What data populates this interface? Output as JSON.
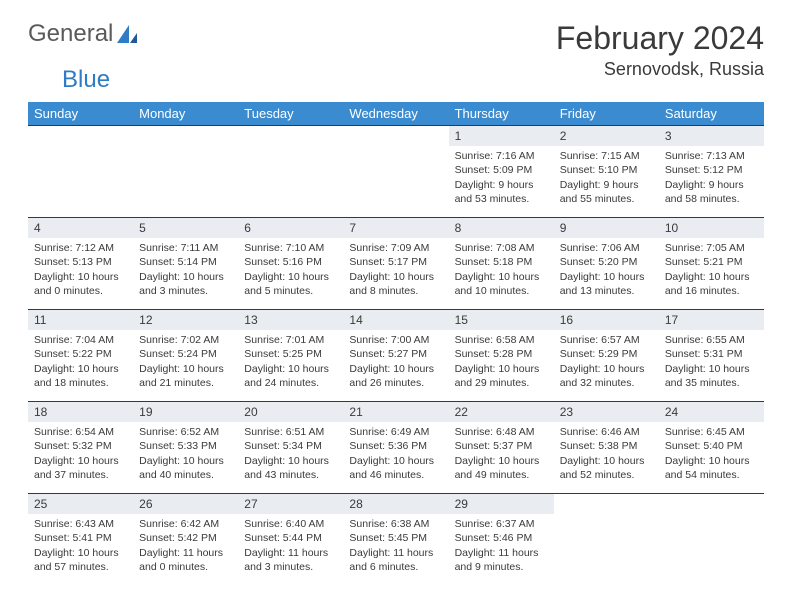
{
  "logo": {
    "word1": "General",
    "word2": "Blue"
  },
  "title": "February 2024",
  "location": "Sernovodsk, Russia",
  "colors": {
    "header_bg": "#3b8bd0",
    "header_text": "#ffffff",
    "daybar_bg": "#e9edf1",
    "daybar_border": "#2a3a52",
    "text": "#3a3a3a",
    "logo_blue": "#2f7cc4"
  },
  "weekdays": [
    "Sunday",
    "Monday",
    "Tuesday",
    "Wednesday",
    "Thursday",
    "Friday",
    "Saturday"
  ],
  "weeks": [
    [
      null,
      null,
      null,
      null,
      {
        "n": "1",
        "sunrise": "7:16 AM",
        "sunset": "5:09 PM",
        "daylight": "9 hours and 53 minutes."
      },
      {
        "n": "2",
        "sunrise": "7:15 AM",
        "sunset": "5:10 PM",
        "daylight": "9 hours and 55 minutes."
      },
      {
        "n": "3",
        "sunrise": "7:13 AM",
        "sunset": "5:12 PM",
        "daylight": "9 hours and 58 minutes."
      }
    ],
    [
      {
        "n": "4",
        "sunrise": "7:12 AM",
        "sunset": "5:13 PM",
        "daylight": "10 hours and 0 minutes."
      },
      {
        "n": "5",
        "sunrise": "7:11 AM",
        "sunset": "5:14 PM",
        "daylight": "10 hours and 3 minutes."
      },
      {
        "n": "6",
        "sunrise": "7:10 AM",
        "sunset": "5:16 PM",
        "daylight": "10 hours and 5 minutes."
      },
      {
        "n": "7",
        "sunrise": "7:09 AM",
        "sunset": "5:17 PM",
        "daylight": "10 hours and 8 minutes."
      },
      {
        "n": "8",
        "sunrise": "7:08 AM",
        "sunset": "5:18 PM",
        "daylight": "10 hours and 10 minutes."
      },
      {
        "n": "9",
        "sunrise": "7:06 AM",
        "sunset": "5:20 PM",
        "daylight": "10 hours and 13 minutes."
      },
      {
        "n": "10",
        "sunrise": "7:05 AM",
        "sunset": "5:21 PM",
        "daylight": "10 hours and 16 minutes."
      }
    ],
    [
      {
        "n": "11",
        "sunrise": "7:04 AM",
        "sunset": "5:22 PM",
        "daylight": "10 hours and 18 minutes."
      },
      {
        "n": "12",
        "sunrise": "7:02 AM",
        "sunset": "5:24 PM",
        "daylight": "10 hours and 21 minutes."
      },
      {
        "n": "13",
        "sunrise": "7:01 AM",
        "sunset": "5:25 PM",
        "daylight": "10 hours and 24 minutes."
      },
      {
        "n": "14",
        "sunrise": "7:00 AM",
        "sunset": "5:27 PM",
        "daylight": "10 hours and 26 minutes."
      },
      {
        "n": "15",
        "sunrise": "6:58 AM",
        "sunset": "5:28 PM",
        "daylight": "10 hours and 29 minutes."
      },
      {
        "n": "16",
        "sunrise": "6:57 AM",
        "sunset": "5:29 PM",
        "daylight": "10 hours and 32 minutes."
      },
      {
        "n": "17",
        "sunrise": "6:55 AM",
        "sunset": "5:31 PM",
        "daylight": "10 hours and 35 minutes."
      }
    ],
    [
      {
        "n": "18",
        "sunrise": "6:54 AM",
        "sunset": "5:32 PM",
        "daylight": "10 hours and 37 minutes."
      },
      {
        "n": "19",
        "sunrise": "6:52 AM",
        "sunset": "5:33 PM",
        "daylight": "10 hours and 40 minutes."
      },
      {
        "n": "20",
        "sunrise": "6:51 AM",
        "sunset": "5:34 PM",
        "daylight": "10 hours and 43 minutes."
      },
      {
        "n": "21",
        "sunrise": "6:49 AM",
        "sunset": "5:36 PM",
        "daylight": "10 hours and 46 minutes."
      },
      {
        "n": "22",
        "sunrise": "6:48 AM",
        "sunset": "5:37 PM",
        "daylight": "10 hours and 49 minutes."
      },
      {
        "n": "23",
        "sunrise": "6:46 AM",
        "sunset": "5:38 PM",
        "daylight": "10 hours and 52 minutes."
      },
      {
        "n": "24",
        "sunrise": "6:45 AM",
        "sunset": "5:40 PM",
        "daylight": "10 hours and 54 minutes."
      }
    ],
    [
      {
        "n": "25",
        "sunrise": "6:43 AM",
        "sunset": "5:41 PM",
        "daylight": "10 hours and 57 minutes."
      },
      {
        "n": "26",
        "sunrise": "6:42 AM",
        "sunset": "5:42 PM",
        "daylight": "11 hours and 0 minutes."
      },
      {
        "n": "27",
        "sunrise": "6:40 AM",
        "sunset": "5:44 PM",
        "daylight": "11 hours and 3 minutes."
      },
      {
        "n": "28",
        "sunrise": "6:38 AM",
        "sunset": "5:45 PM",
        "daylight": "11 hours and 6 minutes."
      },
      {
        "n": "29",
        "sunrise": "6:37 AM",
        "sunset": "5:46 PM",
        "daylight": "11 hours and 9 minutes."
      },
      null,
      null
    ]
  ],
  "labels": {
    "sunrise": "Sunrise: ",
    "sunset": "Sunset: ",
    "daylight": "Daylight: "
  }
}
